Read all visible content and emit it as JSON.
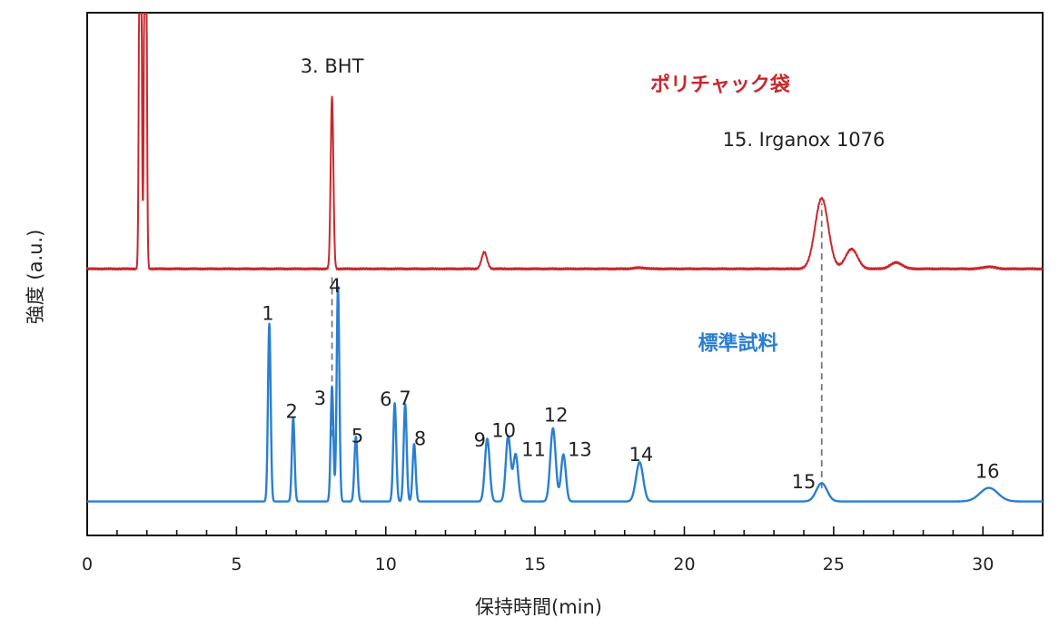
{
  "chart_data": {
    "type": "line",
    "xlabel": "保持時間(min)",
    "ylabel": "強度 (a.u.)",
    "xlim": [
      0,
      32
    ],
    "ylim": [
      0,
      1
    ],
    "x_ticks": [
      0,
      5,
      10,
      15,
      20,
      25,
      30
    ],
    "x_minor_step": 1,
    "grid": false,
    "legend": "inline labels",
    "series": [
      {
        "name": "ポリチャック袋",
        "color": "#c8282d",
        "baseline": 0.51,
        "noise": 0.0018,
        "peaks": [
          {
            "rt": 1.78,
            "height": 1.2,
            "width": 0.035
          },
          {
            "rt": 1.95,
            "height": 1.2,
            "width": 0.035
          },
          {
            "rt": 8.2,
            "height": 0.33,
            "width": 0.045
          },
          {
            "rt": 13.3,
            "height": 0.032,
            "width": 0.09
          },
          {
            "rt": 24.6,
            "height": 0.135,
            "width": 0.22
          },
          {
            "rt": 25.6,
            "height": 0.038,
            "width": 0.2
          },
          {
            "rt": 27.1,
            "height": 0.012,
            "width": 0.2
          },
          {
            "rt": 18.5,
            "height": 0.002,
            "width": 0.2
          },
          {
            "rt": 30.2,
            "height": 0.004,
            "width": 0.2
          }
        ]
      },
      {
        "name": "標準試料",
        "color": "#2b7fd0",
        "baseline": 0.065,
        "noise": 0,
        "peaks": [
          {
            "rt": 6.1,
            "height": 0.34,
            "width": 0.045
          },
          {
            "rt": 6.9,
            "height": 0.16,
            "width": 0.045
          },
          {
            "rt": 8.2,
            "height": 0.22,
            "width": 0.045
          },
          {
            "rt": 8.4,
            "height": 0.41,
            "width": 0.045
          },
          {
            "rt": 9.0,
            "height": 0.124,
            "width": 0.05
          },
          {
            "rt": 10.3,
            "height": 0.188,
            "width": 0.05
          },
          {
            "rt": 10.65,
            "height": 0.186,
            "width": 0.05
          },
          {
            "rt": 10.95,
            "height": 0.11,
            "width": 0.05
          },
          {
            "rt": 13.4,
            "height": 0.12,
            "width": 0.08
          },
          {
            "rt": 14.1,
            "height": 0.125,
            "width": 0.08
          },
          {
            "rt": 14.35,
            "height": 0.09,
            "width": 0.08
          },
          {
            "rt": 15.6,
            "height": 0.14,
            "width": 0.09
          },
          {
            "rt": 15.95,
            "height": 0.09,
            "width": 0.08
          },
          {
            "rt": 18.5,
            "height": 0.075,
            "width": 0.12
          },
          {
            "rt": 24.6,
            "height": 0.035,
            "width": 0.18
          },
          {
            "rt": 30.2,
            "height": 0.026,
            "width": 0.3
          }
        ]
      }
    ],
    "annotations": [
      {
        "text": "3. BHT",
        "x": 8.2,
        "y": 0.885,
        "color": "#222"
      },
      {
        "text": "15. Irganox 1076",
        "x": 24.0,
        "y": 0.745,
        "color": "#222"
      },
      {
        "text": "ポリチャック袋",
        "x": 21.2,
        "y": 0.85,
        "color": "#c8282d",
        "series": true
      },
      {
        "text": "標準試料",
        "x": 21.8,
        "y": 0.355,
        "color": "#2b7fd0",
        "series": true
      },
      {
        "text": "1",
        "x": 6.05,
        "y": 0.412
      },
      {
        "text": "2",
        "x": 6.85,
        "y": 0.225
      },
      {
        "text": "3",
        "x": 7.8,
        "y": 0.25
      },
      {
        "text": "4",
        "x": 8.3,
        "y": 0.465
      },
      {
        "text": "5",
        "x": 9.05,
        "y": 0.178
      },
      {
        "text": "6",
        "x": 10.0,
        "y": 0.248
      },
      {
        "text": "7",
        "x": 10.65,
        "y": 0.25
      },
      {
        "text": "8",
        "x": 11.15,
        "y": 0.173
      },
      {
        "text": "9",
        "x": 13.15,
        "y": 0.17
      },
      {
        "text": "10",
        "x": 13.95,
        "y": 0.188
      },
      {
        "text": "11",
        "x": 14.95,
        "y": 0.152
      },
      {
        "text": "12",
        "x": 15.7,
        "y": 0.218
      },
      {
        "text": "13",
        "x": 16.5,
        "y": 0.152
      },
      {
        "text": "14",
        "x": 18.55,
        "y": 0.142
      },
      {
        "text": "15",
        "x": 24.0,
        "y": 0.09
      },
      {
        "text": "16",
        "x": 30.15,
        "y": 0.11
      }
    ],
    "reference_lines": [
      {
        "x": 8.2,
        "from": 0.19,
        "to": 0.5,
        "style": "dashed"
      },
      {
        "x": 24.6,
        "from": 0.09,
        "to": 0.635,
        "style": "dashed"
      }
    ]
  }
}
